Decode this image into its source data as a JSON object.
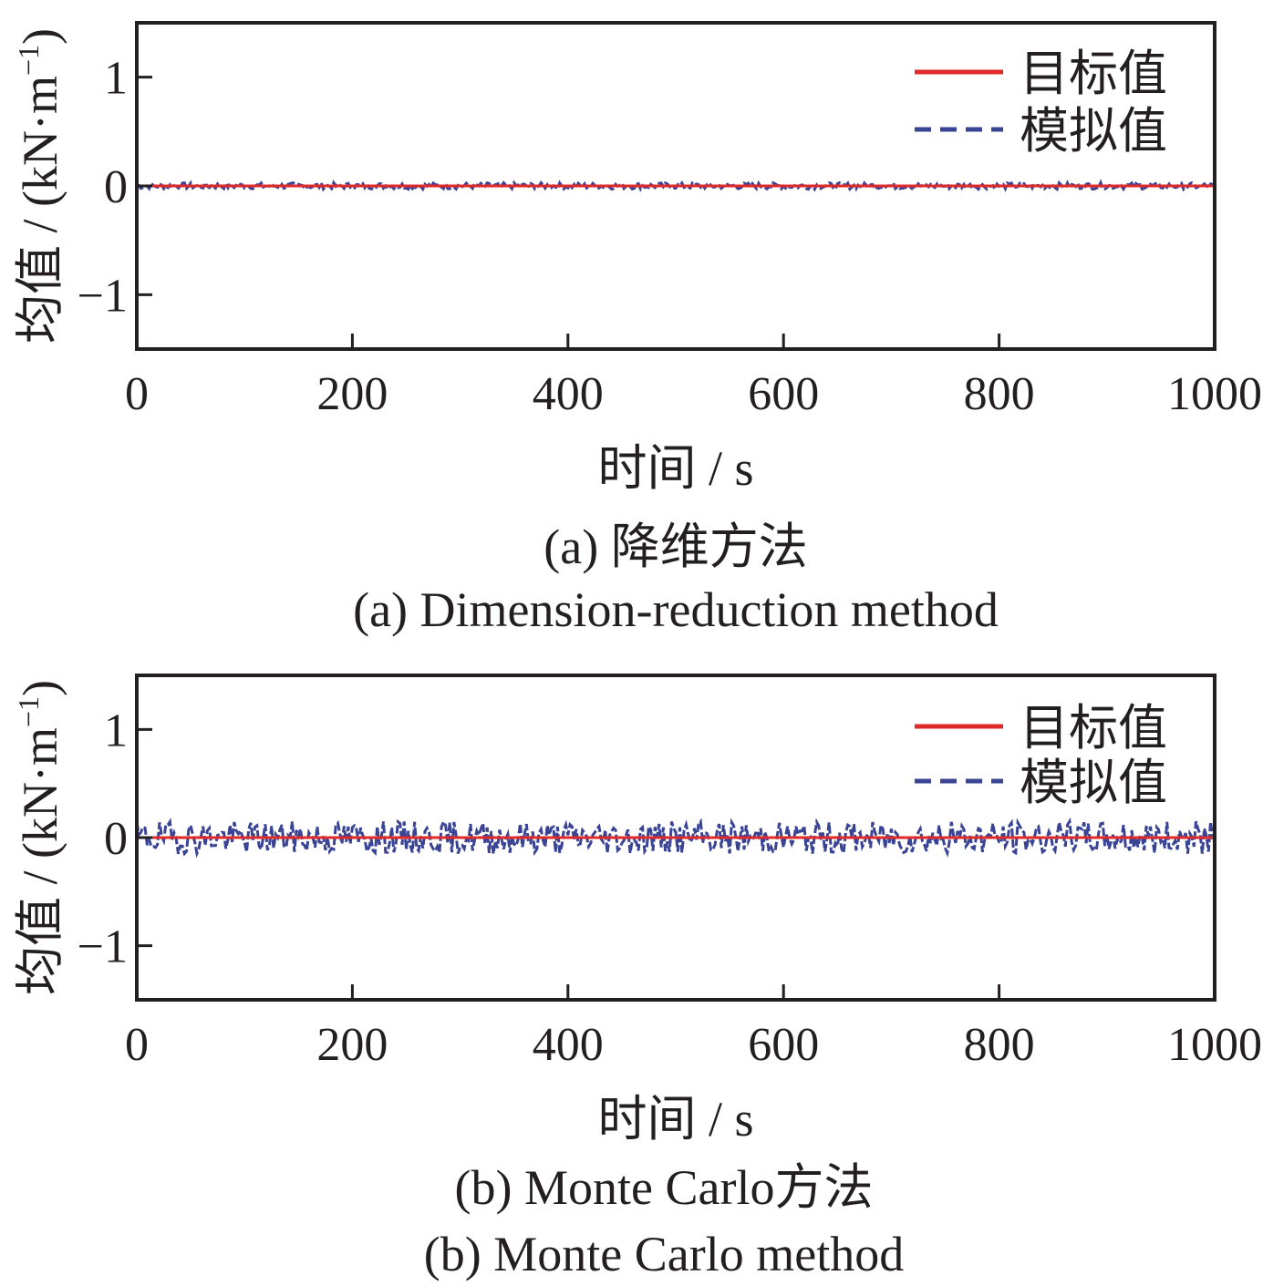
{
  "chart_data": [
    {
      "type": "line",
      "xlabel": "时间 / s",
      "ylabel": "均值 / (kN·m",
      "ylabel_sup": "−1",
      "ylabel_close": ")",
      "xlim": [
        0,
        1000
      ],
      "ylim": [
        -1.5,
        1.5
      ],
      "xticks": [
        "0",
        "200",
        "400",
        "600",
        "800",
        "1000"
      ],
      "yticks": [
        "1",
        "0",
        "−1"
      ],
      "xtick_values": [
        0,
        200,
        400,
        600,
        800,
        1000
      ],
      "ytick_values": [
        1,
        0,
        -1
      ],
      "legend_position": "top-right",
      "grid": false,
      "caption_zh": "(a) 降维方法",
      "caption_en": "(a) Dimension-reduction method",
      "series": [
        {
          "name": "目标值",
          "color": "#e02a2a",
          "style": "solid",
          "x": [
            0,
            1000
          ],
          "y": [
            0,
            0
          ]
        },
        {
          "name": "模拟值",
          "color": "#3a4495",
          "style": "dashed",
          "x_range": [
            0,
            1000
          ],
          "y_mean": 0,
          "y_amplitude": 0.03
        }
      ]
    },
    {
      "type": "line",
      "xlabel": "时间 / s",
      "ylabel": "均值 / (kN·m",
      "ylabel_sup": "−1",
      "ylabel_close": ")",
      "xlim": [
        0,
        1000
      ],
      "ylim": [
        -1.5,
        1.5
      ],
      "xticks": [
        "0",
        "200",
        "400",
        "600",
        "800",
        "1000"
      ],
      "yticks": [
        "1",
        "0",
        "−1"
      ],
      "xtick_values": [
        0,
        200,
        400,
        600,
        800,
        1000
      ],
      "ytick_values": [
        1,
        0,
        -1
      ],
      "legend_position": "top-right",
      "grid": false,
      "caption_zh": "(b) Monte Carlo方法",
      "caption_en": "(b) Monte Carlo method",
      "series": [
        {
          "name": "目标值",
          "color": "#e02a2a",
          "style": "solid",
          "x": [
            0,
            1000
          ],
          "y": [
            0,
            0
          ]
        },
        {
          "name": "模拟值",
          "color": "#3a4495",
          "style": "dashed",
          "x_range": [
            0,
            1000
          ],
          "y_mean": 0,
          "y_amplitude": 0.15
        }
      ]
    }
  ]
}
